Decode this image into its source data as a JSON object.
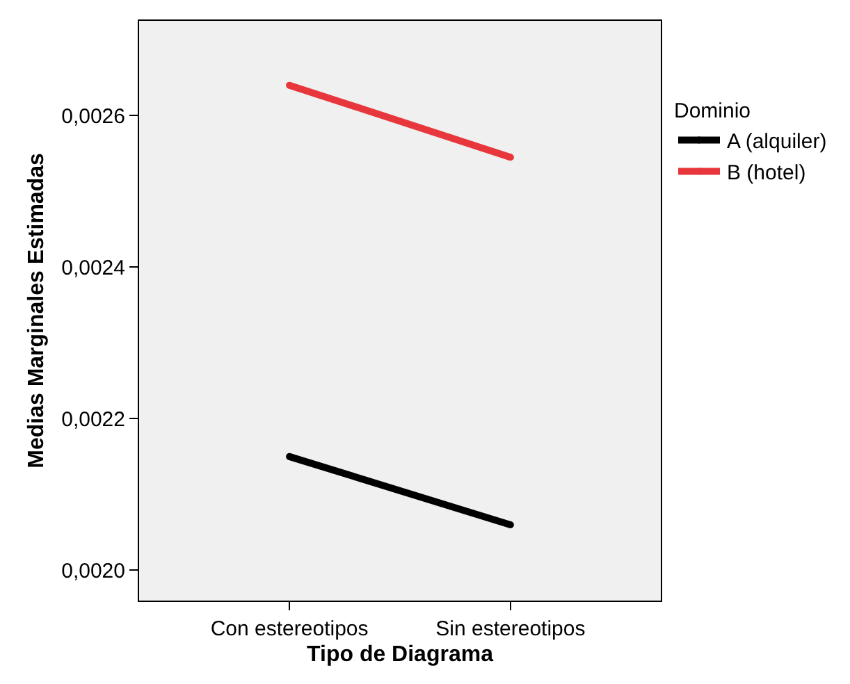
{
  "chart_data": {
    "type": "line",
    "xlabel": "Tipo de Diagrama",
    "ylabel": "Medias Marginales Estimadas",
    "legend_title": "Dominio",
    "categories": [
      "Con estereotipos",
      "Sin estereotipos"
    ],
    "series": [
      {
        "name": "A (alquiler)",
        "color": "#000000",
        "values": [
          0.00215,
          0.00206
        ]
      },
      {
        "name": "B (hotel)",
        "color": "#e8373c",
        "values": [
          0.00264,
          0.002545
        ]
      }
    ],
    "ylim": [
      0.00196,
      0.002725
    ],
    "yticks": [
      {
        "value": 0.002,
        "label": "0,0020"
      },
      {
        "value": 0.0022,
        "label": "0,0022"
      },
      {
        "value": 0.0024,
        "label": "0,0024"
      },
      {
        "value": 0.0026,
        "label": "0,0026"
      }
    ],
    "grid": false,
    "legend": "right",
    "marker": "circle",
    "line_style": "solid"
  }
}
